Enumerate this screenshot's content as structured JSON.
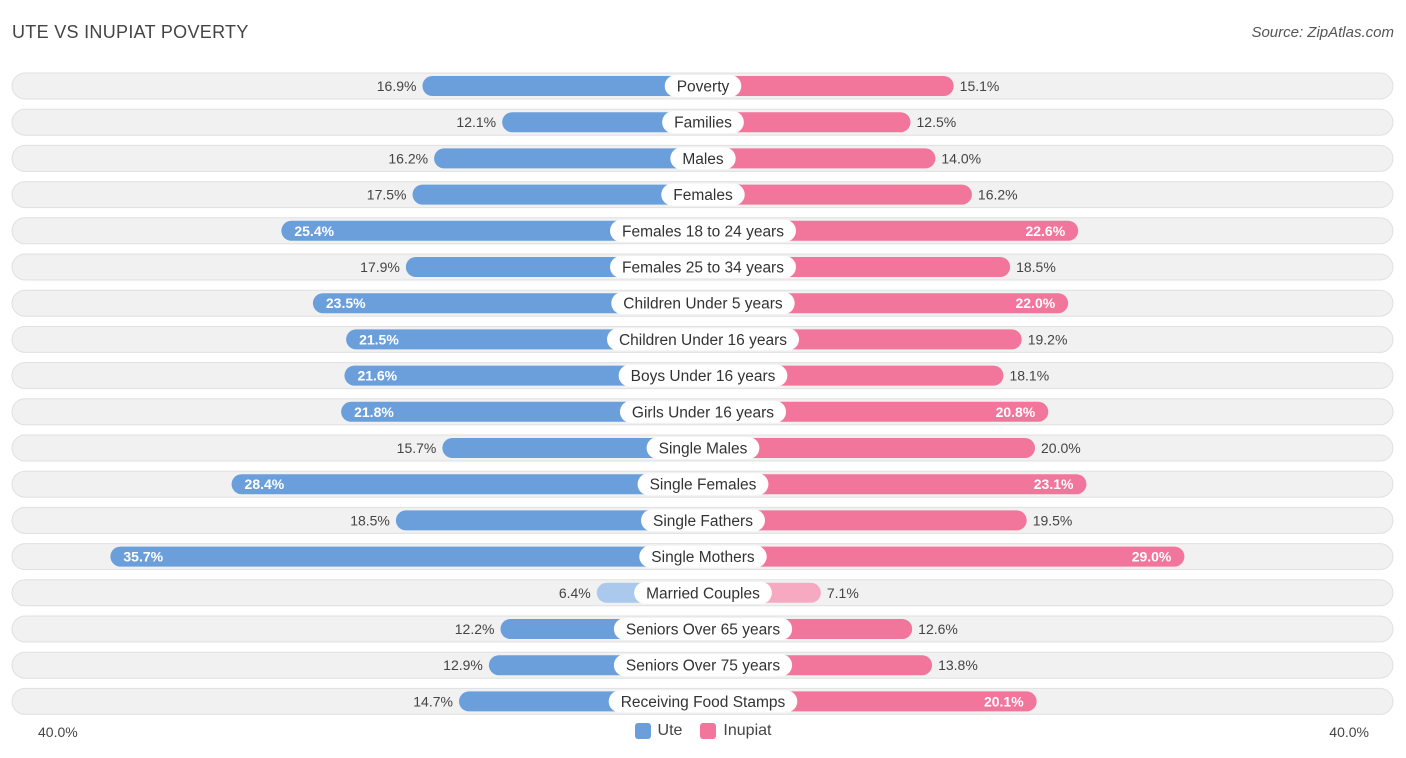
{
  "header": {
    "title": "UTE VS INUPIAT POVERTY",
    "source": "Source: ZipAtlas.com"
  },
  "axis": {
    "left_label": "40.0%",
    "right_label": "40.0%"
  },
  "legend": [
    {
      "label": "Ute",
      "color": "#6a9fdc"
    },
    {
      "label": "Inupiat",
      "color": "#f2759c"
    }
  ],
  "colors": {
    "ute_strong": "#6a9fdc",
    "ute_light": "#a7c6ec",
    "inupiat_strong": "#f2759c",
    "inupiat_light": "#f7a9c1",
    "row_bg": "#f1f1f1",
    "row_border": "#e0e0e0"
  },
  "chart_data": {
    "type": "bar",
    "orientation": "horizontal-diverging",
    "title": "UTE VS INUPIAT POVERTY",
    "xlim": [
      0,
      40
    ],
    "unit": "%",
    "categories": [
      "Poverty",
      "Families",
      "Males",
      "Females",
      "Females 18 to 24 years",
      "Females 25 to 34 years",
      "Children Under 5 years",
      "Children Under 16 years",
      "Boys Under 16 years",
      "Girls Under 16 years",
      "Single Males",
      "Single Females",
      "Single Fathers",
      "Single Mothers",
      "Married Couples",
      "Seniors Over 65 years",
      "Seniors Over 75 years",
      "Receiving Food Stamps"
    ],
    "series": [
      {
        "name": "Ute",
        "values": [
          16.9,
          12.1,
          16.2,
          17.5,
          25.4,
          17.9,
          23.5,
          21.5,
          21.6,
          21.8,
          15.7,
          28.4,
          18.5,
          35.7,
          6.4,
          12.2,
          12.9,
          14.7
        ],
        "labels": [
          "16.9%",
          "12.1%",
          "16.2%",
          "17.5%",
          "25.4%",
          "17.9%",
          "23.5%",
          "21.5%",
          "21.6%",
          "21.8%",
          "15.7%",
          "28.4%",
          "18.5%",
          "35.7%",
          "6.4%",
          "12.2%",
          "12.9%",
          "14.7%"
        ]
      },
      {
        "name": "Inupiat",
        "values": [
          15.1,
          12.5,
          14.0,
          16.2,
          22.6,
          18.5,
          22.0,
          19.2,
          18.1,
          20.8,
          20.0,
          23.1,
          19.5,
          29.0,
          7.1,
          12.6,
          13.8,
          20.1
        ],
        "labels": [
          "15.1%",
          "12.5%",
          "14.0%",
          "16.2%",
          "22.6%",
          "18.5%",
          "22.0%",
          "19.2%",
          "18.1%",
          "20.8%",
          "20.0%",
          "23.1%",
          "19.5%",
          "29.0%",
          "7.1%",
          "12.6%",
          "13.8%",
          "20.1%"
        ]
      }
    ]
  }
}
